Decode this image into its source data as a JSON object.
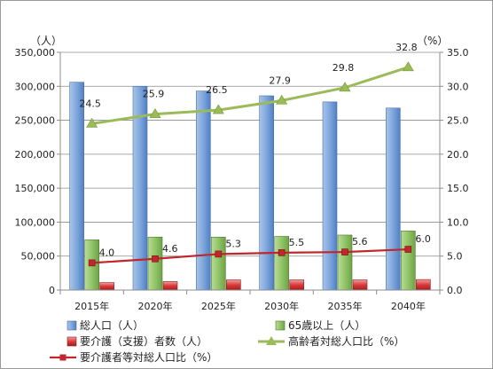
{
  "chart_data": {
    "type": "bar",
    "categories": [
      "2015年",
      "2020年",
      "2025年",
      "2030年",
      "2035年",
      "2040年"
    ],
    "left_unit": "（人）",
    "right_unit": "（%）",
    "ylim_left": [
      0,
      350000
    ],
    "ylim_right": [
      0,
      35
    ],
    "left_ticks": [
      "0",
      "50,000",
      "100,000",
      "150,000",
      "200,000",
      "250,000",
      "300,000",
      "350,000"
    ],
    "right_ticks": [
      "0.0",
      "5.0",
      "10.0",
      "15.0",
      "20.0",
      "25.0",
      "30.0",
      "35.0"
    ],
    "series": [
      {
        "name": "総人口（人）",
        "kind": "bar",
        "axis": "left",
        "color": "#7ea6dc",
        "values": [
          306000,
          300000,
          293000,
          286000,
          277000,
          268000
        ]
      },
      {
        "name": "65歳以上（人）",
        "kind": "bar",
        "axis": "left",
        "color": "#92c468",
        "values": [
          74000,
          78000,
          78000,
          79000,
          81000,
          87000
        ]
      },
      {
        "name": "要介護（支援）者数（人）",
        "kind": "bar",
        "axis": "left",
        "color": "#d93a3a",
        "values": [
          11000,
          12500,
          15000,
          15000,
          15000,
          15500
        ]
      },
      {
        "name": "高齢者対総人口比（%）",
        "kind": "line",
        "axis": "right",
        "color": "#9bbb59",
        "marker": "triangle",
        "values": [
          24.5,
          25.9,
          26.5,
          27.9,
          29.8,
          32.8
        ],
        "labels": [
          "24.5",
          "25.9",
          "26.5",
          "27.9",
          "29.8",
          "32.8"
        ]
      },
      {
        "name": "要介護者等対総人口比（%）",
        "kind": "line",
        "axis": "right",
        "color": "#c0272d",
        "marker": "square",
        "values": [
          4.0,
          4.6,
          5.3,
          5.5,
          5.6,
          6.0
        ],
        "labels": [
          "4.0",
          "4.6",
          "5.3",
          "5.5",
          "5.6",
          "6.0"
        ]
      }
    ],
    "grid": true,
    "legend_position": "bottom"
  }
}
